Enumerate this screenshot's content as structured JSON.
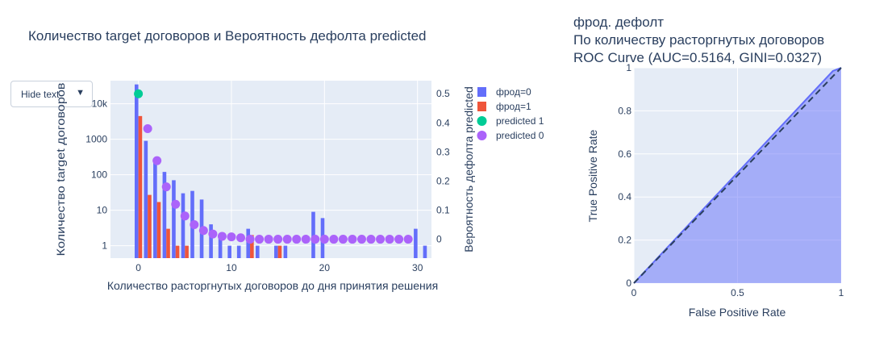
{
  "dropdown": {
    "label": "Hide text",
    "arrow": "▼"
  },
  "colors": {
    "fraud0": "#636efa",
    "fraud1": "#ef553b",
    "pred1": "#00cc96",
    "pred0": "#ab63fa",
    "plot_bg": "#e5ecf6",
    "text": "#2a3f5f"
  },
  "chart_data": [
    {
      "type": "bar",
      "title": "Количество target договоров и Вероятность дефолта predicted",
      "xlabel": "Количество расторгнутых договоров до дня принятия решения",
      "ylabel": "Количество target договоров",
      "y2label": "Вероятность дефолта predicted",
      "yscale": "log",
      "xlim": [
        -3,
        31.5
      ],
      "ylim_log10": [
        -0.35,
        4.65
      ],
      "y2lim": [
        -0.065,
        0.545
      ],
      "x_ticks": [
        0,
        10,
        20,
        30
      ],
      "x_tick_labels": [
        "0",
        "10",
        "20",
        "30"
      ],
      "y_ticks": [
        1,
        10,
        100,
        1000,
        10000
      ],
      "y_tick_labels": [
        "1",
        "10",
        "100",
        "1000",
        "10k"
      ],
      "y2_ticks": [
        0,
        0.1,
        0.2,
        0.3,
        0.4,
        0.5
      ],
      "y2_tick_labels": [
        "0",
        "0.1",
        "0.2",
        "0.3",
        "0.4",
        "0.5"
      ],
      "legend_position": "right",
      "series": [
        {
          "name": "фрод=0",
          "kind": "bar",
          "x": [
            0,
            1,
            2,
            3,
            4,
            5,
            6,
            7,
            8,
            9,
            10,
            11,
            12,
            13,
            15,
            16,
            19,
            20,
            30,
            31
          ],
          "values": [
            35000,
            900,
            290,
            120,
            70,
            30,
            35,
            20,
            4,
            2,
            1,
            1,
            3,
            1,
            1,
            1,
            9,
            6,
            3,
            1
          ]
        },
        {
          "name": "фрод=1",
          "kind": "bar",
          "x": [
            0,
            1,
            2,
            3,
            4,
            5,
            12,
            15
          ],
          "values": [
            4500,
            27,
            17,
            3,
            1,
            1,
            2,
            1
          ]
        },
        {
          "name": "predicted 1",
          "kind": "scatter",
          "axis": "y2",
          "x": [
            0
          ],
          "values": [
            0.5
          ]
        },
        {
          "name": "predicted 0",
          "kind": "scatter",
          "axis": "y2",
          "x": [
            1,
            2,
            3,
            4,
            5,
            6,
            7,
            8,
            9,
            10,
            11,
            12,
            13,
            14,
            15,
            16,
            17,
            18,
            19,
            20,
            21,
            22,
            23,
            24,
            25,
            26,
            27,
            28,
            29
          ],
          "values": [
            0.38,
            0.27,
            0.18,
            0.12,
            0.08,
            0.05,
            0.03,
            0.018,
            0.01,
            0.008,
            0.005,
            0,
            0,
            0,
            0,
            0,
            0,
            0,
            0,
            0,
            0,
            0,
            0,
            0,
            0,
            0,
            0,
            0,
            0
          ]
        }
      ]
    },
    {
      "type": "area",
      "title_lines": [
        "фрод. дефолт",
        "По количеству расторгнутых договоров",
        "ROC Curve (AUC=0.5164, GINI=0.0327)"
      ],
      "xlabel": "False Positive Rate",
      "ylabel": "True Positive Rate",
      "xlim": [
        0,
        1
      ],
      "ylim": [
        0,
        1
      ],
      "x_ticks": [
        0,
        0.5,
        1
      ],
      "x_tick_labels": [
        "0",
        "0.5",
        "1"
      ],
      "y_ticks": [
        0,
        0.2,
        0.4,
        0.6,
        0.8,
        1
      ],
      "y_tick_labels": [
        "0",
        "0.2",
        "0.4",
        "0.6",
        "0.8",
        "1"
      ],
      "roc": {
        "x": [
          0,
          0.96,
          1
        ],
        "y": [
          0,
          0.985,
          1
        ]
      },
      "diagonal": {
        "x": [
          0,
          1
        ],
        "y": [
          0,
          1
        ]
      }
    }
  ]
}
